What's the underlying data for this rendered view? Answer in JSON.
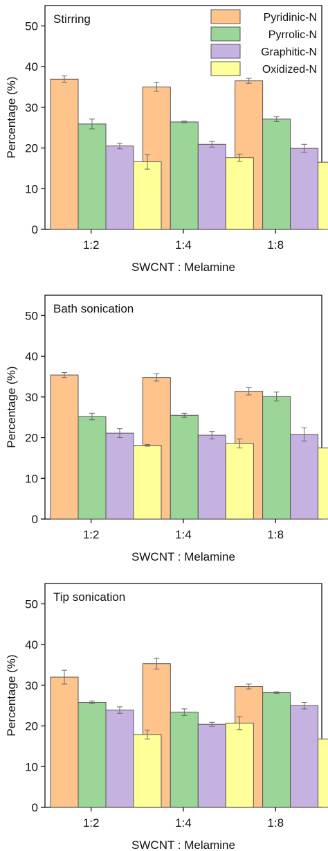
{
  "legend": {
    "entries": [
      "Pyridinic-N",
      "Pyrrolic-N",
      "Graphitic-N",
      "Oxidized-N"
    ]
  },
  "series_colors": [
    "#FFC38C",
    "#9BD597",
    "#C6B2E0",
    "#FFFF99"
  ],
  "chart_data": [
    {
      "type": "bar",
      "title": "Stirring",
      "xlabel": "SWCNT : Melamine",
      "ylabel": "Percentage (%)",
      "ylim": [
        0,
        55
      ],
      "yticks": [
        0,
        10,
        20,
        30,
        40,
        50
      ],
      "categories": [
        "1:2",
        "1:4",
        "1:8"
      ],
      "legend_position": "top-right",
      "series": [
        {
          "name": "Pyridinic-N",
          "values": [
            36.9,
            35.0,
            36.5
          ],
          "errors": [
            0.8,
            1.1,
            0.6
          ]
        },
        {
          "name": "Pyrrolic-N",
          "values": [
            25.9,
            26.4,
            27.1
          ],
          "errors": [
            1.2,
            0.2,
            0.6
          ]
        },
        {
          "name": "Graphitic-N",
          "values": [
            20.5,
            20.9,
            19.9
          ],
          "errors": [
            0.7,
            0.7,
            1.0
          ]
        },
        {
          "name": "Oxidized-N",
          "values": [
            16.6,
            17.6,
            16.5
          ],
          "errors": [
            1.8,
            0.9,
            2.2
          ]
        }
      ]
    },
    {
      "type": "bar",
      "title": "Bath sonication",
      "xlabel": "SWCNT : Melamine",
      "ylabel": "Percentage (%)",
      "ylim": [
        0,
        55
      ],
      "yticks": [
        0,
        10,
        20,
        30,
        40,
        50
      ],
      "categories": [
        "1:2",
        "1:4",
        "1:8"
      ],
      "series": [
        {
          "name": "Pyridinic-N",
          "values": [
            35.4,
            34.8,
            31.4
          ],
          "errors": [
            0.6,
            0.9,
            0.9
          ]
        },
        {
          "name": "Pyrrolic-N",
          "values": [
            25.2,
            25.5,
            30.1
          ],
          "errors": [
            0.8,
            0.5,
            1.1
          ]
        },
        {
          "name": "Graphitic-N",
          "values": [
            21.1,
            20.6,
            20.8
          ],
          "errors": [
            1.1,
            0.9,
            1.6
          ]
        },
        {
          "name": "Oxidized-N",
          "values": [
            18.1,
            18.6,
            17.5
          ],
          "errors": [
            0.2,
            1.1,
            0.6
          ]
        }
      ]
    },
    {
      "type": "bar",
      "title": "Tip sonication",
      "xlabel": "SWCNT : Melamine",
      "ylabel": "Percentage (%)",
      "ylim": [
        0,
        55
      ],
      "yticks": [
        0,
        10,
        20,
        30,
        40,
        50
      ],
      "categories": [
        "1:2",
        "1:4",
        "1:8"
      ],
      "series": [
        {
          "name": "Pyridinic-N",
          "values": [
            32.0,
            35.3,
            29.7
          ],
          "errors": [
            1.7,
            1.3,
            0.6
          ]
        },
        {
          "name": "Pyrrolic-N",
          "values": [
            25.8,
            23.4,
            28.2
          ],
          "errors": [
            0.3,
            0.8,
            0.2
          ]
        },
        {
          "name": "Graphitic-N",
          "values": [
            23.9,
            20.4,
            25.0
          ],
          "errors": [
            0.8,
            0.5,
            0.8
          ]
        },
        {
          "name": "Oxidized-N",
          "values": [
            17.9,
            20.7,
            16.8
          ],
          "errors": [
            1.1,
            1.6,
            0.9
          ]
        }
      ]
    }
  ]
}
